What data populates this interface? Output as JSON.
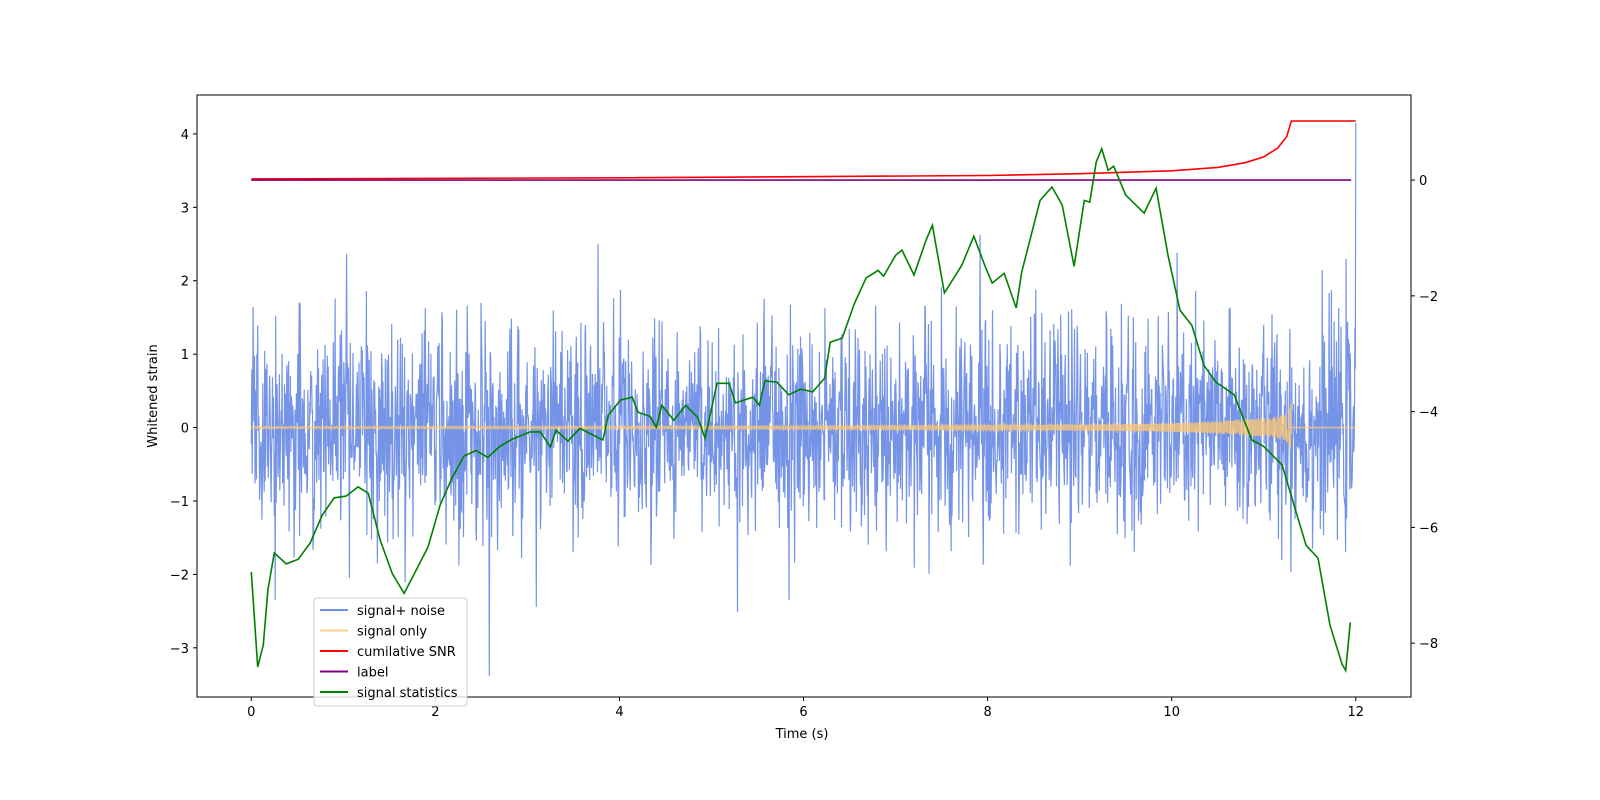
{
  "chart_data": {
    "type": "line",
    "xlabel": "Time (s)",
    "ylabel": "Whitened strain",
    "ylabel_right": "",
    "xlim": [
      -0.59,
      12.6
    ],
    "ylim": [
      -3.67,
      4.53
    ],
    "ylim_right": [
      -8.93,
      1.47
    ],
    "xticks": [
      0,
      2,
      4,
      6,
      8,
      10,
      12
    ],
    "yticks": [
      -3,
      -2,
      -1,
      0,
      1,
      2,
      3,
      4
    ],
    "yticks_right": [
      -8,
      -6,
      -4,
      -2,
      0
    ],
    "grid": false,
    "legend_position": "lower-left",
    "series": [
      {
        "name": "signal+ noise",
        "axis": "left",
        "color": "#6f8ee6",
        "kind": "noise",
        "x_range": [
          0,
          12
        ],
        "samples": 2400,
        "std": 0.72,
        "final_spike": 4.15,
        "seed": 7
      },
      {
        "name": "signal only",
        "axis": "left",
        "color": "#ffc872",
        "kind": "chirp",
        "x_range": [
          0,
          11.3
        ],
        "peak_amplitude": 0.45,
        "merger_time": 11.3
      },
      {
        "name": "cumilative SNR",
        "axis": "right",
        "color": "#ff0000",
        "x": [
          0,
          4,
          8,
          9,
          10,
          10.5,
          10.8,
          11,
          11.15,
          11.25,
          11.3,
          12
        ],
        "y": [
          0.02,
          0.04,
          0.08,
          0.11,
          0.16,
          0.22,
          0.3,
          0.4,
          0.55,
          0.75,
          1.02,
          1.02
        ]
      },
      {
        "name": "label",
        "axis": "right",
        "color": "#800080",
        "x": [
          0,
          11.95
        ],
        "y": [
          0,
          0
        ]
      },
      {
        "name": "signal statistics",
        "axis": "right",
        "color": "#008000",
        "x": [
          0,
          0.07,
          0.13,
          0.18,
          0.25,
          0.38,
          0.51,
          0.64,
          0.77,
          0.9,
          1.03,
          1.16,
          1.27,
          1.4,
          1.53,
          1.66,
          1.79,
          1.92,
          2.05,
          2.18,
          2.31,
          2.44,
          2.57,
          2.7,
          2.83,
          3.03,
          3.14,
          3.25,
          3.31,
          3.44,
          3.57,
          3.82,
          3.88,
          4.01,
          4.14,
          4.2,
          4.33,
          4.4,
          4.46,
          4.59,
          4.72,
          4.85,
          4.93,
          5.06,
          5.19,
          5.26,
          5.45,
          5.52,
          5.58,
          5.71,
          5.84,
          5.97,
          6.1,
          6.23,
          6.29,
          6.42,
          6.55,
          6.68,
          6.81,
          6.87,
          7.0,
          7.07,
          7.2,
          7.33,
          7.4,
          7.53,
          7.72,
          7.85,
          7.98,
          8.05,
          8.18,
          8.31,
          8.37,
          8.57,
          8.7,
          8.81,
          8.94,
          9.05,
          9.11,
          9.18,
          9.24,
          9.31,
          9.37,
          9.5,
          9.7,
          9.83,
          9.96,
          10.09,
          10.22,
          10.35,
          10.48,
          10.68,
          10.87,
          11.0,
          11.2,
          11.33,
          11.46,
          11.59,
          11.72,
          11.85,
          11.89,
          11.94
        ],
        "y": [
          -6.77,
          -8.41,
          -8.03,
          -7.08,
          -6.44,
          -6.63,
          -6.55,
          -6.27,
          -5.79,
          -5.49,
          -5.46,
          -5.3,
          -5.41,
          -6.22,
          -6.79,
          -7.14,
          -6.74,
          -6.34,
          -5.62,
          -5.15,
          -4.77,
          -4.67,
          -4.79,
          -4.6,
          -4.48,
          -4.35,
          -4.35,
          -4.61,
          -4.32,
          -4.51,
          -4.29,
          -4.49,
          -4.06,
          -3.8,
          -3.75,
          -4.01,
          -4.08,
          -4.27,
          -3.89,
          -4.15,
          -3.89,
          -4.1,
          -4.46,
          -3.51,
          -3.51,
          -3.85,
          -3.75,
          -3.89,
          -3.47,
          -3.49,
          -3.71,
          -3.61,
          -3.66,
          -3.42,
          -2.8,
          -2.73,
          -2.14,
          -1.69,
          -1.56,
          -1.66,
          -1.3,
          -1.21,
          -1.64,
          -1.04,
          -0.78,
          -1.95,
          -1.47,
          -0.97,
          -1.52,
          -1.78,
          -1.61,
          -2.21,
          -1.59,
          -0.35,
          -0.12,
          -0.43,
          -1.49,
          -0.35,
          -0.38,
          0.31,
          0.54,
          0.17,
          0.24,
          -0.26,
          -0.57,
          -0.14,
          -1.3,
          -2.25,
          -2.51,
          -3.2,
          -3.49,
          -3.71,
          -4.49,
          -4.6,
          -4.92,
          -5.62,
          -6.31,
          -6.53,
          -7.69,
          -8.36,
          -8.47,
          -7.64
        ]
      }
    ]
  }
}
